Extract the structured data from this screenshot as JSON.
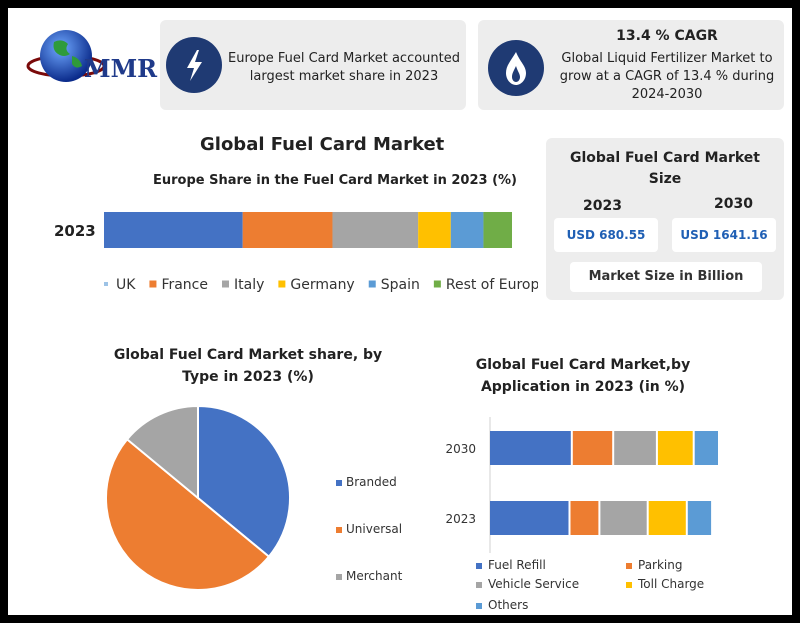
{
  "brand": {
    "name": "MMR"
  },
  "info1": {
    "text": "Europe Fuel Card Market accounted largest market share in 2023"
  },
  "info2": {
    "title": "13.4 % CAGR",
    "text": "Global Liquid Fertilizer Market to grow at a CAGR of 13.4 % during 2024-2030"
  },
  "main_title": "Global Fuel Card Market",
  "market_size": {
    "title": "Global Fuel Card Market Size",
    "year1": "2023",
    "year2": "2030",
    "value1": "USD 680.55",
    "value2": "USD 1641.16",
    "footer": "Market Size in Billion"
  },
  "colors": {
    "blue": "#4472c4",
    "orange": "#ed7d31",
    "gray": "#a5a5a5",
    "yellow": "#ffc000",
    "lightblue": "#5b9bd5",
    "green": "#70ad47",
    "navy": "#1f3a73",
    "size_value": "#1f5fb4"
  },
  "chart_data": [
    {
      "type": "bar",
      "orientation": "horizontal-stacked",
      "title": "Europe Share in the Fuel Card Market in 2023 (%)",
      "categories": [
        "2023"
      ],
      "series": [
        {
          "name": "UK",
          "values": [
            34
          ]
        },
        {
          "name": "France",
          "values": [
            22
          ]
        },
        {
          "name": "Italy",
          "values": [
            21
          ]
        },
        {
          "name": "Germany",
          "values": [
            8
          ]
        },
        {
          "name": "Spain",
          "values": [
            8
          ]
        },
        {
          "name": "Rest of Europe",
          "values": [
            7
          ]
        }
      ],
      "series_colors": [
        "#4472c4",
        "#ed7d31",
        "#a5a5a5",
        "#ffc000",
        "#5b9bd5",
        "#70ad47"
      ],
      "legend_colors": [
        "#9dc3e6",
        "#ed7d31",
        "#a5a5a5",
        "#ffc000",
        "#5b9bd5",
        "#70ad47"
      ],
      "legend": "bottom"
    },
    {
      "type": "pie",
      "title": "Global Fuel Card Market share, by Type in 2023  (%)",
      "labels": [
        "Branded",
        "Universal",
        "Merchant"
      ],
      "values": [
        36,
        50,
        14
      ],
      "colors": [
        "#4472c4",
        "#ed7d31",
        "#a5a5a5"
      ],
      "legend": "right"
    },
    {
      "type": "bar",
      "orientation": "horizontal-stacked",
      "title": "Global Fuel Card Market,by Application in 2023 (in %)",
      "categories": [
        "2030",
        "2023"
      ],
      "series": [
        {
          "name": "Fuel Refill",
          "values": [
            36,
            35
          ]
        },
        {
          "name": "Parking",
          "values": [
            18,
            13
          ]
        },
        {
          "name": "Vehicle Service",
          "values": [
            19,
            21
          ]
        },
        {
          "name": "Toll Charge",
          "values": [
            16,
            17
          ]
        },
        {
          "name": "Others",
          "values": [
            11,
            11
          ]
        }
      ],
      "colors": [
        "#4472c4",
        "#ed7d31",
        "#a5a5a5",
        "#ffc000",
        "#5b9bd5"
      ],
      "legend": "bottom"
    }
  ]
}
